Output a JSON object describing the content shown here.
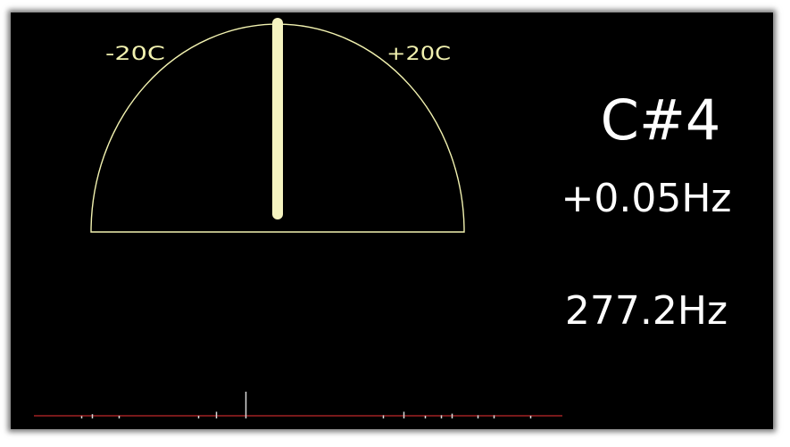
{
  "gauge": {
    "label_left": "-20C",
    "label_right": "+20C",
    "cents_min": -20,
    "cents_max": 20,
    "needle_cents": 0,
    "arc_color": "#f2f2b0",
    "needle_color": "#f5f3c0"
  },
  "readout": {
    "note": "C#4",
    "offset": "+0.05Hz",
    "frequency": "277.2Hz"
  },
  "spectrum": {
    "baseline_color": "#c0282a",
    "bar_color": "#d8d8d8",
    "bins": [
      {
        "pos": 0.09,
        "level": 0.09
      },
      {
        "pos": 0.11,
        "level": 0.16
      },
      {
        "pos": 0.16,
        "level": 0.1
      },
      {
        "pos": 0.31,
        "level": 0.1
      },
      {
        "pos": 0.345,
        "level": 0.25
      },
      {
        "pos": 0.4,
        "level": 1.0
      },
      {
        "pos": 0.66,
        "level": 0.12
      },
      {
        "pos": 0.7,
        "level": 0.25
      },
      {
        "pos": 0.74,
        "level": 0.1
      },
      {
        "pos": 0.77,
        "level": 0.12
      },
      {
        "pos": 0.79,
        "level": 0.18
      },
      {
        "pos": 0.84,
        "level": 0.12
      },
      {
        "pos": 0.87,
        "level": 0.12
      },
      {
        "pos": 0.94,
        "level": 0.1
      }
    ]
  }
}
